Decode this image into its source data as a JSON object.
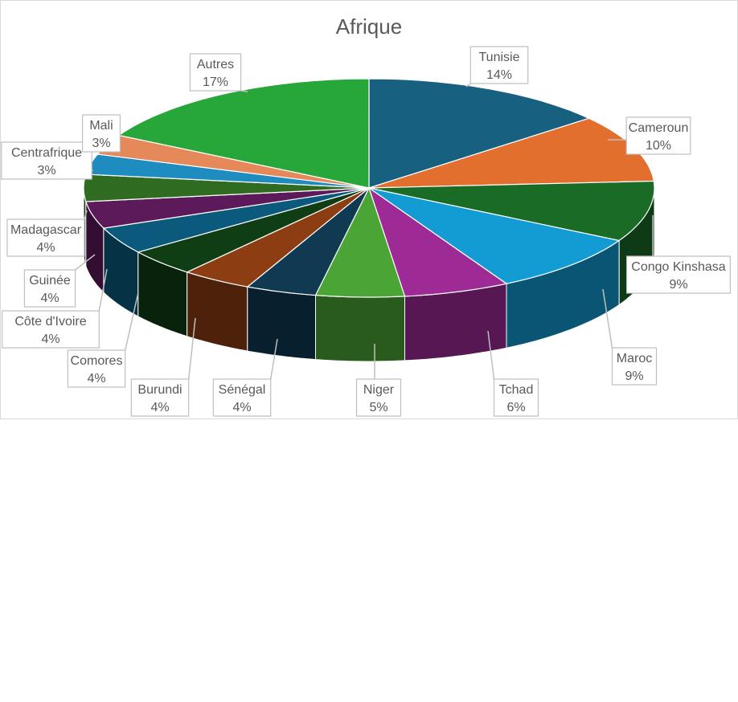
{
  "chart_data": {
    "type": "pie",
    "title": "Afrique",
    "categories": [
      "Tunisie",
      "Cameroun",
      "Congo Kinshasa",
      "Maroc",
      "Tchad",
      "Niger",
      "Sénégal",
      "Burundi",
      "Comores",
      "Côte d'Ivoire",
      "Guinée",
      "Madagascar",
      "Centrafrique",
      "Mali",
      "Autres"
    ],
    "values": [
      14,
      10,
      9,
      9,
      6,
      5,
      4,
      4,
      4,
      4,
      4,
      4,
      3,
      3,
      17
    ],
    "percent_labels": [
      "14%",
      "10%",
      "9%",
      "9%",
      "6%",
      "5%",
      "4%",
      "4%",
      "4%",
      "4%",
      "4%",
      "4%",
      "3%",
      "3%",
      "17%"
    ],
    "colors": [
      "#17607f",
      "#e36f2f",
      "#1a6b26",
      "#139bd3",
      "#9e2a96",
      "#4aa535",
      "#0f3a52",
      "#8d3d12",
      "#0f3e14",
      "#0b5a7e",
      "#5c1a5a",
      "#2f6b21",
      "#1f8cc0",
      "#e6895a",
      "#27a63a"
    ],
    "legend": "none",
    "labels_position": "outside-callout",
    "style": "3d"
  }
}
